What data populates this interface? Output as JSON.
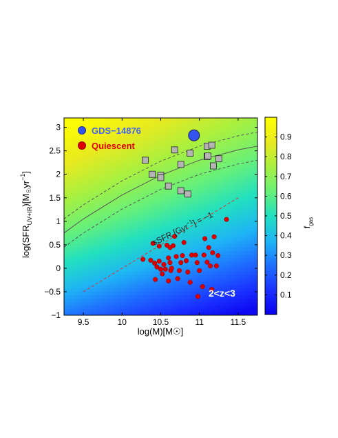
{
  "chart_data": {
    "type": "scatter",
    "xlabel": "log(M)[M☉]",
    "ylabel_parts": {
      "main": "log(SFR",
      "sub": "UV+IR",
      "mid": ")[M",
      "sun": "☉",
      "unit": "yr",
      "sup": "−1",
      "close": "]"
    },
    "xlim": [
      9.25,
      11.75
    ],
    "ylim": [
      -1,
      3.2
    ],
    "xticks": [
      9.5,
      10,
      10.5,
      11,
      11.5
    ],
    "xtick_labels": [
      "9.5",
      "10",
      "10.5",
      "11",
      "11.5"
    ],
    "yticks": [
      -1,
      -0.5,
      0,
      0.5,
      1,
      1.5,
      2,
      2.5,
      3
    ],
    "ytick_labels": [
      "−1",
      "−0.5",
      "0",
      "0.5",
      "1",
      "1.5",
      "2",
      "2.5",
      "3"
    ],
    "colorbar": {
      "label_main": "f",
      "label_sub": "gas",
      "range": [
        0,
        1
      ],
      "ticks": [
        0.1,
        0.2,
        0.3,
        0.4,
        0.5,
        0.6,
        0.7,
        0.8,
        0.9
      ],
      "tick_labels": [
        "0.1",
        "0.2",
        "0.3",
        "0.4",
        "0.5",
        "0.6",
        "0.7",
        "0.8",
        "0.9"
      ]
    },
    "legend": {
      "placement": "top-left",
      "entries": [
        {
          "label": "GDS−14876",
          "color": "#4466ee",
          "marker": "circle"
        },
        {
          "label": "Quiescent",
          "color": "#e00000",
          "marker": "circle"
        }
      ]
    },
    "annotations": {
      "line_label": "sSFR [Gyr",
      "line_label_sup": "−1",
      "line_label_end": "] = −1",
      "redshift": "2<z<3"
    },
    "series": [
      {
        "name": "GDS−14876",
        "color": "#3355ee",
        "points": [
          [
            10.93,
            2.83
          ]
        ]
      },
      {
        "name": "Quiescent",
        "color": "#dd0000",
        "points": [
          [
            10.27,
            0.19
          ],
          [
            10.37,
            0.17
          ],
          [
            10.4,
            0.53
          ],
          [
            10.42,
            0.11
          ],
          [
            10.43,
            -0.24
          ],
          [
            10.45,
            0.03
          ],
          [
            10.48,
            0.47
          ],
          [
            10.48,
            0.15
          ],
          [
            10.5,
            -0.02
          ],
          [
            10.52,
            -0.12
          ],
          [
            10.54,
            0.08
          ],
          [
            10.56,
            -0.02
          ],
          [
            10.58,
            0.49
          ],
          [
            10.6,
            0.22
          ],
          [
            10.6,
            -0.27
          ],
          [
            10.62,
            0.44
          ],
          [
            10.62,
            0.12
          ],
          [
            10.63,
            -0.05
          ],
          [
            10.64,
            0.0
          ],
          [
            10.66,
            0.48
          ],
          [
            10.68,
            0.68
          ],
          [
            10.7,
            0.25
          ],
          [
            10.72,
            -0.22
          ],
          [
            10.74,
            -0.05
          ],
          [
            10.76,
            0.12
          ],
          [
            10.78,
            0.27
          ],
          [
            10.8,
            0.55
          ],
          [
            10.83,
            0.16
          ],
          [
            10.85,
            -0.08
          ],
          [
            10.88,
            -0.3
          ],
          [
            10.9,
            0.28
          ],
          [
            10.95,
            0.28
          ],
          [
            10.97,
            0.12
          ],
          [
            10.98,
            -0.6
          ],
          [
            11.0,
            -0.05
          ],
          [
            11.04,
            -0.39
          ],
          [
            11.06,
            0.28
          ],
          [
            11.07,
            0.63
          ],
          [
            11.1,
            0.13
          ],
          [
            11.12,
            0.44
          ],
          [
            11.14,
            0.05
          ],
          [
            11.16,
            -0.45
          ],
          [
            11.17,
            0.33
          ],
          [
            11.19,
            0.67
          ],
          [
            11.22,
            0.05
          ],
          [
            11.24,
            0.27
          ],
          [
            11.35,
            1.04
          ]
        ]
      },
      {
        "name": "",
        "color": "#b4b4b4",
        "points": [
          [
            10.3,
            2.3
          ],
          [
            10.39,
            2.0
          ],
          [
            10.5,
            1.98
          ],
          [
            10.5,
            1.93
          ],
          [
            10.6,
            1.75
          ],
          [
            10.68,
            2.52
          ],
          [
            10.76,
            2.21
          ],
          [
            10.76,
            1.65
          ],
          [
            10.85,
            1.58
          ],
          [
            10.88,
            2.45
          ],
          [
            11.1,
            2.6
          ],
          [
            11.1,
            2.38
          ],
          [
            11.11,
            2.39
          ],
          [
            11.16,
            2.62
          ],
          [
            11.18,
            2.18
          ],
          [
            11.25,
            2.33
          ]
        ]
      }
    ],
    "curves": [
      {
        "style": "solid",
        "color": "#555555",
        "x": [
          9.25,
          9.5,
          10.0,
          10.5,
          11.0,
          11.5,
          11.75
        ],
        "y": [
          0.75,
          1.05,
          1.56,
          1.98,
          2.3,
          2.52,
          2.6
        ]
      },
      {
        "style": "dashed",
        "color": "#555555",
        "x": [
          9.25,
          9.5,
          10.0,
          10.5,
          11.0,
          11.5,
          11.75
        ],
        "y": [
          1.05,
          1.35,
          1.86,
          2.28,
          2.6,
          2.82,
          2.9
        ]
      },
      {
        "style": "dashed",
        "color": "#555555",
        "x": [
          9.25,
          9.5,
          10.0,
          10.5,
          11.0,
          11.5,
          11.75
        ],
        "y": [
          0.45,
          0.75,
          1.26,
          1.68,
          2.0,
          2.22,
          2.3
        ]
      },
      {
        "style": "dashed",
        "color": "#e03030",
        "x": [
          9.5,
          11.5
        ],
        "y": [
          -0.5,
          1.5
        ]
      }
    ]
  }
}
